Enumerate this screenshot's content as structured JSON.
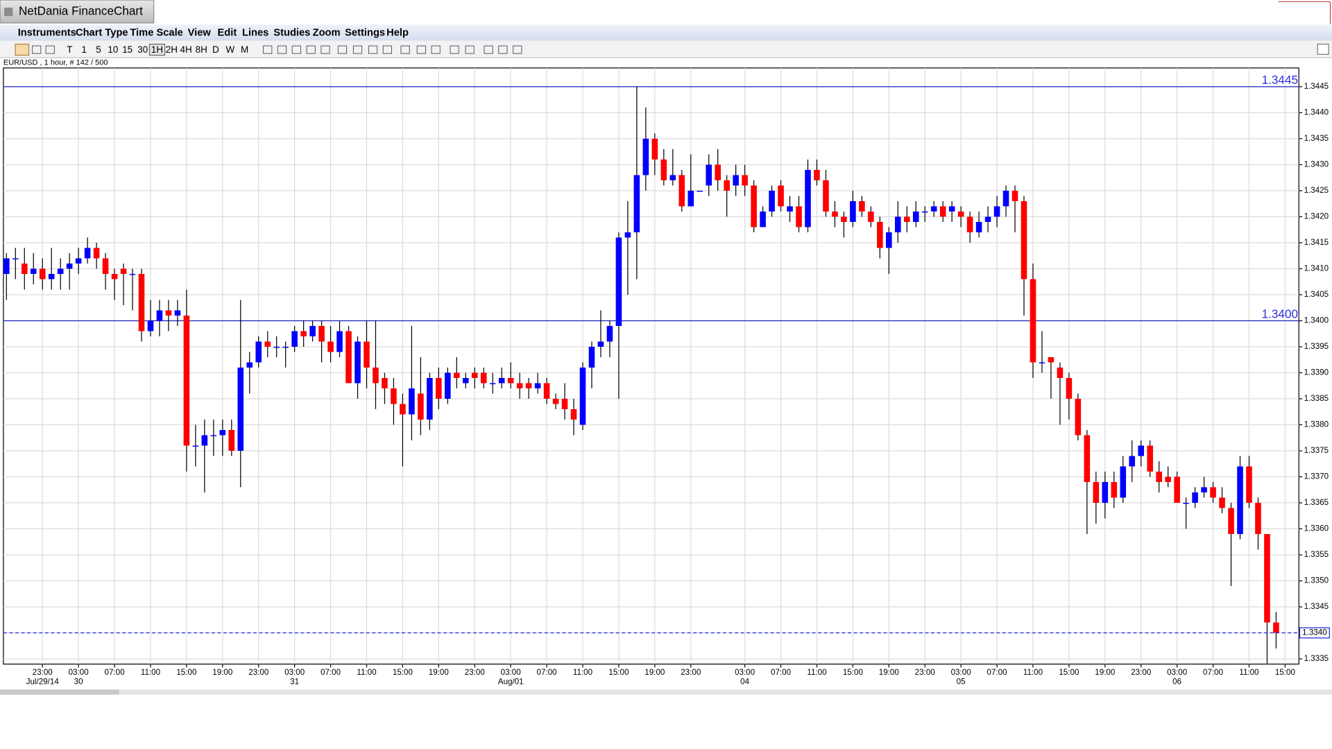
{
  "window": {
    "title": "NetDania FinanceChart"
  },
  "menu": [
    "Instruments",
    "Chart Type",
    "Time Scale",
    "View",
    "Edit",
    "Lines",
    "Studies",
    "Zoom",
    "Settings",
    "Help"
  ],
  "toolbar": [
    "T",
    "1",
    "5",
    "10",
    "15",
    "30",
    "1H",
    "2H",
    "4H",
    "8H",
    "D",
    "W",
    "M"
  ],
  "chart_data": {
    "type": "candlestick",
    "info": "EUR/USD , 1 hour, # 142 / 500",
    "up_color": "#0000ff",
    "down_color": "#ff0000",
    "grid": true,
    "ylim": [
      1.3334,
      1.34486
    ],
    "yticks": [
      1.3445,
      {
        "value": 1.344,
        "label": "1.3440"
      },
      1.3435,
      {
        "value": 1.343,
        "label": "1.3430"
      },
      1.3425,
      {
        "value": 1.342,
        "label": "1.3420"
      },
      1.3415,
      {
        "value": 1.341,
        "label": "1.3410"
      },
      1.3405,
      {
        "value": 1.34,
        "label": "1.3400"
      },
      1.3395,
      {
        "value": 1.339,
        "label": "1.3390"
      },
      1.3385,
      {
        "value": 1.338,
        "label": "1.3380"
      },
      1.3375,
      {
        "value": 1.337,
        "label": "1.3370"
      },
      1.3365,
      {
        "value": 1.336,
        "label": "1.3360"
      },
      1.3355,
      {
        "value": 1.335,
        "label": "1.3350"
      },
      1.3345,
      {
        "value": 1.334,
        "label": "1.3340"
      },
      1.3335
    ],
    "hlines": [
      1.3445,
      {
        "value": 1.34,
        "label": "1.3400"
      }
    ],
    "last_price": {
      "value": 1.334,
      "label": "1.3340"
    },
    "categories": [
      null,
      null,
      null,
      null,
      "23:00",
      null,
      null,
      null,
      "03:00",
      null,
      null,
      null,
      "07:00",
      null,
      null,
      null,
      "11:00",
      null,
      null,
      null,
      "15:00",
      null,
      null,
      null,
      "19:00",
      null,
      null,
      null,
      "23:00",
      null,
      null,
      null,
      "03:00",
      null,
      null,
      null,
      "07:00",
      null,
      null,
      null,
      "11:00",
      null,
      null,
      null,
      "15:00",
      null,
      null,
      null,
      "19:00",
      null,
      null,
      null,
      "23:00",
      null,
      null,
      null,
      "03:00",
      null,
      null,
      null,
      "07:00",
      null,
      null,
      null,
      "11:00",
      null,
      null,
      null,
      "15:00",
      null,
      null,
      null,
      "19:00",
      null,
      null,
      null,
      "23:00",
      null,
      null,
      null,
      null,
      null,
      "03:00",
      null,
      null,
      null,
      "07:00",
      null,
      null,
      null,
      "11:00",
      null,
      null,
      null,
      "15:00",
      null,
      null,
      null,
      "19:00",
      null,
      null,
      null,
      "23:00",
      null,
      null,
      null,
      "03:00",
      null,
      null,
      null,
      "07:00",
      null,
      null,
      null,
      "11:00",
      null,
      null,
      null,
      "15:00",
      null,
      null,
      null,
      "19:00",
      null,
      null,
      null,
      "23:00",
      null,
      null,
      null,
      "03:00",
      null,
      null,
      null,
      "07:00",
      null,
      null,
      null,
      "11:00",
      null,
      null,
      null,
      "15:00"
    ],
    "dates": [
      null,
      null,
      null,
      null,
      "Jul/29/14",
      null,
      null,
      null,
      "30",
      null,
      null,
      null,
      null,
      null,
      null,
      null,
      null,
      null,
      null,
      null,
      null,
      null,
      null,
      null,
      null,
      null,
      null,
      null,
      null,
      null,
      null,
      null,
      "31",
      null,
      null,
      null,
      null,
      null,
      null,
      null,
      null,
      null,
      null,
      null,
      null,
      null,
      null,
      null,
      null,
      null,
      null,
      null,
      null,
      null,
      null,
      null,
      "Aug/01",
      null,
      null,
      null,
      null,
      null,
      null,
      null,
      null,
      null,
      null,
      null,
      null,
      null,
      null,
      null,
      null,
      null,
      null,
      null,
      null,
      null,
      null,
      null,
      null,
      null,
      "04",
      null,
      null,
      null,
      null,
      null,
      null,
      null,
      null,
      null,
      null,
      null,
      null,
      null,
      null,
      null,
      null,
      null,
      null,
      null,
      null,
      null,
      null,
      null,
      "05",
      null,
      null,
      null,
      null,
      null,
      null,
      null,
      null,
      null,
      null,
      null,
      null,
      null,
      null,
      null,
      null,
      null,
      null,
      null,
      null,
      null,
      null,
      null,
      "06",
      null,
      null,
      null,
      null,
      null,
      null,
      null,
      null,
      null,
      null,
      null,
      null
    ],
    "open": [
      1.3409,
      1.3412,
      1.3411,
      1.3409,
      1.341,
      1.3408,
      1.3409,
      1.341,
      1.3411,
      1.3412,
      1.3414,
      1.3412,
      1.3409,
      1.341,
      1.3409,
      1.3409,
      1.3398,
      1.34,
      1.3402,
      1.3401,
      1.3401,
      1.3376,
      1.3376,
      1.3378,
      1.3378,
      1.3379,
      1.3375,
      1.3391,
      1.3392,
      1.3396,
      1.3395,
      1.3395,
      1.3395,
      1.3398,
      1.3397,
      1.3399,
      1.3396,
      1.3394,
      1.3398,
      1.3388,
      1.3396,
      1.3391,
      1.3389,
      1.3387,
      1.3384,
      1.3382,
      1.3386,
      1.3381,
      1.3389,
      1.3385,
      1.339,
      1.3388,
      1.339,
      1.339,
      1.3388,
      1.3388,
      1.3389,
      1.3388,
      1.3388,
      1.3387,
      1.3388,
      1.3385,
      1.3385,
      1.3383,
      1.338,
      1.3391,
      1.3395,
      1.3396,
      1.3399,
      1.3416,
      1.3417,
      1.3428,
      1.3435,
      1.3431,
      1.3427,
      1.3428,
      1.3422,
      1.3425,
      1.3426,
      1.343,
      1.3427,
      1.3426,
      1.3428,
      1.3426,
      1.3418,
      1.3421,
      1.3426,
      1.3421,
      1.3422,
      1.3418,
      1.3429,
      1.3427,
      1.3421,
      1.342,
      1.3419,
      1.3423,
      1.3421,
      1.3419,
      1.3414,
      1.3417,
      1.342,
      1.3419,
      1.3421,
      1.3421,
      1.3422,
      1.3421,
      1.3421,
      1.342,
      1.3417,
      1.3419,
      1.342,
      1.3422,
      1.3425,
      1.3423,
      1.3408,
      1.3392,
      1.3393,
      1.3391,
      1.3389,
      1.3385,
      1.3378,
      1.3369,
      1.3365,
      1.3369,
      1.3366,
      1.3372,
      1.3374,
      1.3376,
      1.3371,
      1.337,
      1.337,
      1.3365,
      1.3365,
      1.3367,
      1.3368,
      1.3366,
      1.3364,
      1.3359,
      1.3372,
      1.3365,
      1.3359,
      1.3342,
      null
    ],
    "high": [
      1.3413,
      1.3414,
      1.3414,
      1.3413,
      1.3412,
      1.3414,
      1.3412,
      1.3413,
      1.3414,
      1.3416,
      1.3415,
      1.3413,
      1.341,
      1.3411,
      1.341,
      1.341,
      1.3404,
      1.3404,
      1.3404,
      1.3404,
      1.3406,
      1.338,
      1.3381,
      1.3381,
      1.3381,
      1.3381,
      1.3404,
      1.3394,
      1.3397,
      1.3398,
      1.3397,
      1.3396,
      1.3399,
      1.34,
      1.34,
      1.34,
      1.3399,
      1.34,
      1.3399,
      1.3397,
      1.34,
      1.34,
      1.339,
      1.3389,
      1.3386,
      1.3399,
      1.3393,
      1.339,
      1.3391,
      1.3391,
      1.3393,
      1.339,
      1.3391,
      1.3391,
      1.339,
      1.3391,
      1.3392,
      1.339,
      1.3389,
      1.339,
      1.3389,
      1.3386,
      1.3388,
      1.3385,
      1.3392,
      1.3396,
      1.3402,
      1.34,
      1.3417,
      1.3423,
      1.3445,
      1.3441,
      1.3436,
      1.3433,
      1.3433,
      1.3429,
      1.3432,
      1.3425,
      1.3432,
      1.3433,
      1.3428,
      1.343,
      1.343,
      1.3427,
      1.3422,
      1.3426,
      1.3427,
      1.3424,
      1.3424,
      1.3431,
      1.3431,
      1.3429,
      1.3423,
      1.3421,
      1.3425,
      1.3424,
      1.3422,
      1.342,
      1.3418,
      1.3423,
      1.3422,
      1.3423,
      1.3422,
      1.3423,
      1.3423,
      1.3423,
      1.3422,
      1.3421,
      1.3421,
      1.3422,
      1.3424,
      1.3426,
      1.3426,
      1.3424,
      1.3411,
      1.3398,
      1.3393,
      1.3392,
      1.339,
      1.3386,
      1.3379,
      1.3371,
      1.3371,
      1.3371,
      1.3374,
      1.3377,
      1.3377,
      1.3377,
      1.3373,
      1.3372,
      1.3371,
      1.3366,
      1.3368,
      1.337,
      1.3369,
      1.3368,
      1.3365,
      1.3374,
      1.3374,
      1.3366,
      1.3359,
      1.3344,
      null
    ],
    "low": [
      1.3404,
      1.3408,
      1.3406,
      1.3407,
      1.3406,
      1.3406,
      1.3406,
      1.3406,
      1.3409,
      1.3411,
      1.341,
      1.3406,
      1.3404,
      1.3403,
      1.3402,
      1.3396,
      1.3397,
      1.3397,
      1.3398,
      1.3399,
      1.3371,
      1.3372,
      1.3367,
      1.3374,
      1.3374,
      1.3374,
      1.3368,
      1.3386,
      1.3391,
      1.3393,
      1.3393,
      1.3391,
      1.3394,
      1.3395,
      1.3396,
      1.3392,
      1.3392,
      1.3393,
      1.3388,
      1.3385,
      1.3387,
      1.3383,
      1.3384,
      1.338,
      1.3372,
      1.3377,
      1.3378,
      1.3379,
      1.3383,
      1.3384,
      1.3387,
      1.3387,
      1.3387,
      1.3387,
      1.3386,
      1.3387,
      1.3387,
      1.3385,
      1.3385,
      1.3386,
      1.3384,
      1.3383,
      1.3381,
      1.3378,
      1.3379,
      1.3387,
      1.3393,
      1.3393,
      1.3385,
      1.3405,
      1.3408,
      1.3425,
      1.3428,
      1.3426,
      1.3426,
      1.3421,
      1.3422,
      1.3425,
      1.3424,
      1.3425,
      1.342,
      1.3424,
      1.3424,
      1.3417,
      1.3418,
      1.342,
      1.3421,
      1.3419,
      1.3417,
      1.3417,
      1.3426,
      1.342,
      1.3418,
      1.3416,
      1.3418,
      1.342,
      1.3418,
      1.3412,
      1.3409,
      1.3415,
      1.3417,
      1.3418,
      1.3419,
      1.342,
      1.3419,
      1.3419,
      1.3418,
      1.3415,
      1.3416,
      1.3417,
      1.3418,
      1.342,
      1.3417,
      1.3401,
      1.3389,
      1.339,
      1.3385,
      1.338,
      1.3381,
      1.3377,
      1.3359,
      1.3361,
      1.3362,
      1.3364,
      1.3365,
      1.3369,
      1.3372,
      1.337,
      1.3367,
      1.3368,
      1.3365,
      1.336,
      1.3364,
      1.3366,
      1.3365,
      1.3363,
      1.3349,
      1.3358,
      1.3364,
      1.3356,
      1.3334,
      1.3337,
      null
    ],
    "close": [
      1.3412,
      1.3412,
      1.3409,
      1.341,
      1.3408,
      1.3409,
      1.341,
      1.3411,
      1.3412,
      1.3414,
      1.3412,
      1.3409,
      1.3408,
      1.3409,
      1.3409,
      1.3398,
      1.34,
      1.3402,
      1.3401,
      1.3402,
      1.3376,
      1.3376,
      1.3378,
      1.3378,
      1.3379,
      1.3375,
      1.3391,
      1.3392,
      1.3396,
      1.3395,
      1.3395,
      1.3395,
      1.3398,
      1.3397,
      1.3399,
      1.3396,
      1.3394,
      1.3398,
      1.3388,
      1.3396,
      1.3391,
      1.3388,
      1.3387,
      1.3384,
      1.3382,
      1.3387,
      1.3381,
      1.3389,
      1.3385,
      1.339,
      1.3389,
      1.3389,
      1.3389,
      1.3388,
      1.3388,
      1.3389,
      1.3388,
      1.3387,
      1.3387,
      1.3388,
      1.3385,
      1.3384,
      1.3383,
      1.3381,
      1.3391,
      1.3395,
      1.3396,
      1.3399,
      1.3416,
      1.3417,
      1.3428,
      1.3435,
      1.3431,
      1.3427,
      1.3428,
      1.3422,
      1.3425,
      1.3425,
      1.343,
      1.3427,
      1.3425,
      1.3428,
      1.3426,
      1.3418,
      1.3421,
      1.3425,
      1.3422,
      1.3422,
      1.3418,
      1.3429,
      1.3427,
      1.3421,
      1.342,
      1.3419,
      1.3423,
      1.3421,
      1.3419,
      1.3414,
      1.3417,
      1.342,
      1.3419,
      1.3421,
      1.3421,
      1.3422,
      1.342,
      1.3422,
      1.342,
      1.3417,
      1.3419,
      1.342,
      1.3422,
      1.3425,
      1.3423,
      1.3408,
      1.3392,
      1.3392,
      1.3392,
      1.3389,
      1.3385,
      1.3378,
      1.3369,
      1.3365,
      1.3369,
      1.3366,
      1.3372,
      1.3374,
      1.3376,
      1.3371,
      1.3369,
      1.3369,
      1.3365,
      1.3365,
      1.3367,
      1.3368,
      1.3366,
      1.3364,
      1.3359,
      1.3372,
      1.3365,
      1.3359,
      1.3342,
      1.334,
      null
    ]
  }
}
